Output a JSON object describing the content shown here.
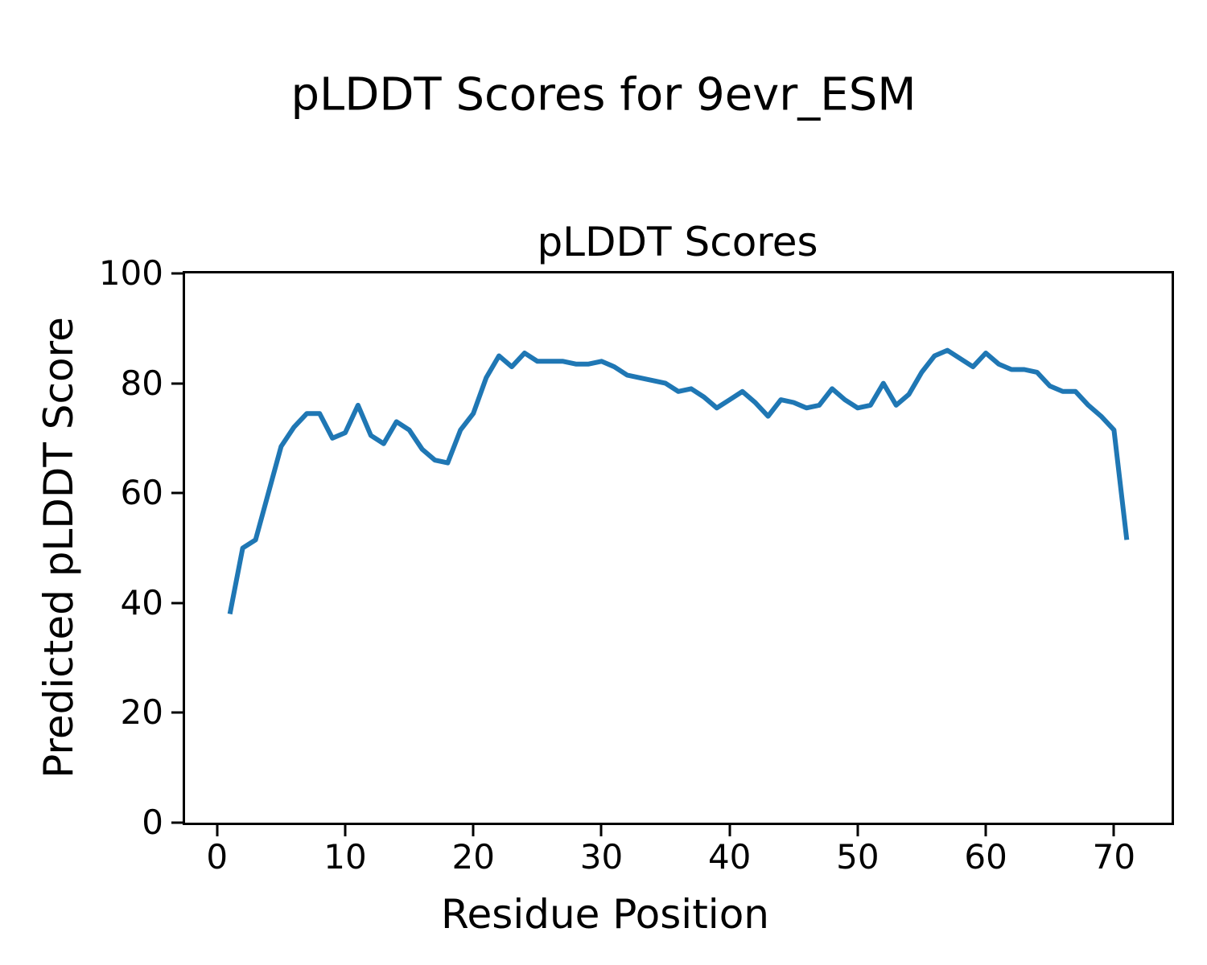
{
  "figure": {
    "suptitle": "pLDDT Scores for 9evr_ESM",
    "axes_title": "pLDDT Scores",
    "xlabel": "Residue Position",
    "ylabel": "Predicted pLDDT Score"
  },
  "chart_data": {
    "type": "line",
    "title": "pLDDT Scores",
    "suptitle": "pLDDT Scores for 9evr_ESM",
    "xlabel": "Residue Position",
    "ylabel": "Predicted pLDDT Score",
    "line_color": "#1f77b4",
    "line_width": 6,
    "grid": false,
    "legend": "none",
    "xlim": [
      -2.5,
      74.5
    ],
    "ylim": [
      0,
      100
    ],
    "x_ticks": [
      0,
      10,
      20,
      30,
      40,
      50,
      60,
      70
    ],
    "y_ticks": [
      0,
      20,
      40,
      60,
      80,
      100
    ],
    "x": [
      1,
      2,
      3,
      4,
      5,
      6,
      7,
      8,
      9,
      10,
      11,
      12,
      13,
      14,
      15,
      16,
      17,
      18,
      19,
      20,
      21,
      22,
      23,
      24,
      25,
      26,
      27,
      28,
      29,
      30,
      31,
      32,
      33,
      34,
      35,
      36,
      37,
      38,
      39,
      40,
      41,
      42,
      43,
      44,
      45,
      46,
      47,
      48,
      49,
      50,
      51,
      52,
      53,
      54,
      55,
      56,
      57,
      58,
      59,
      60,
      61,
      62,
      63,
      64,
      65,
      66,
      67,
      68,
      69,
      70,
      71
    ],
    "values": [
      38,
      50,
      51.5,
      60,
      68.5,
      72,
      74.5,
      74.5,
      70,
      71,
      76,
      70.5,
      69,
      73,
      71.5,
      68,
      66,
      65.5,
      71.5,
      74.5,
      81,
      85,
      83,
      85.5,
      84,
      84,
      84,
      83.5,
      83.5,
      84,
      83,
      81.5,
      81,
      80.5,
      80,
      78.5,
      79,
      77.5,
      75.5,
      77,
      78.5,
      76.5,
      74,
      77,
      76.5,
      75.5,
      76,
      79,
      77,
      75.5,
      76,
      80,
      76,
      78,
      82,
      85,
      86,
      84.5,
      83,
      85.5,
      83.5,
      82.5,
      82.5,
      82,
      79.5,
      78.5,
      78.5,
      76,
      74,
      71.5,
      51.5
    ]
  }
}
